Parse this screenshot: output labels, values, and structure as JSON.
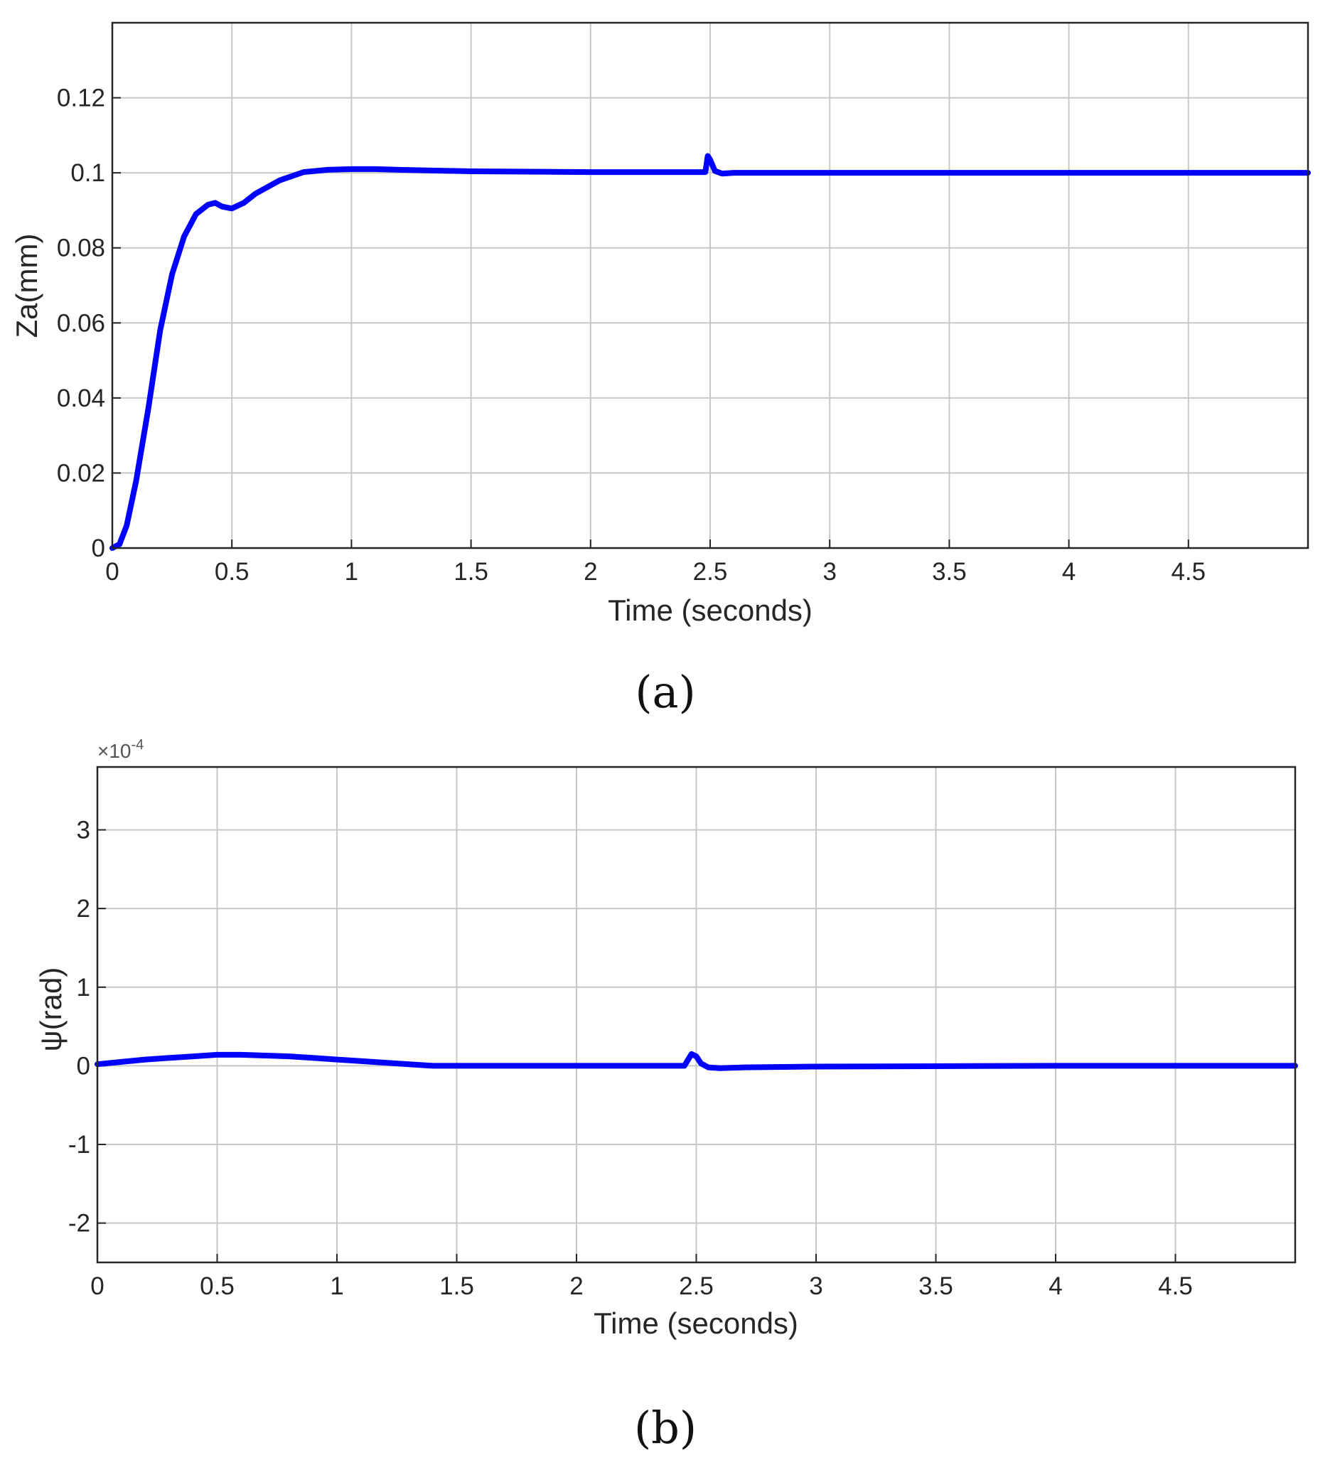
{
  "chart_data": [
    {
      "type": "line",
      "caption": "(a)",
      "xlabel": "Time (seconds)",
      "ylabel": "Za(mm)",
      "xlim": [
        0,
        5
      ],
      "ylim": [
        0,
        0.14
      ],
      "xticks": [
        0,
        0.5,
        1,
        1.5,
        2,
        2.5,
        3,
        3.5,
        4,
        4.5
      ],
      "xtick_labels": [
        "0",
        "0.5",
        "1",
        "1.5",
        "2",
        "2.5",
        "3",
        "3.5",
        "4",
        "4.5"
      ],
      "yticks": [
        0,
        0.02,
        0.04,
        0.06,
        0.08,
        0.1,
        0.12
      ],
      "ytick_labels": [
        "0",
        "0.02",
        "0.04",
        "0.06",
        "0.08",
        "0.1",
        "0.12"
      ],
      "exponent_label": "",
      "grid": true,
      "series": [
        {
          "color": "#0000ff",
          "x": [
            0,
            0.03,
            0.06,
            0.1,
            0.15,
            0.2,
            0.25,
            0.3,
            0.35,
            0.4,
            0.43,
            0.46,
            0.5,
            0.55,
            0.6,
            0.7,
            0.8,
            0.9,
            1.0,
            1.1,
            1.2,
            1.5,
            2.0,
            2.48,
            2.49,
            2.5,
            2.52,
            2.55,
            2.6,
            3.0,
            4.0,
            5.0
          ],
          "y": [
            0,
            0.001,
            0.006,
            0.018,
            0.037,
            0.058,
            0.073,
            0.083,
            0.089,
            0.0915,
            0.092,
            0.091,
            0.0905,
            0.092,
            0.0945,
            0.098,
            0.1002,
            0.1008,
            0.101,
            0.101,
            0.1008,
            0.1004,
            0.1002,
            0.1002,
            0.1045,
            0.1035,
            0.1005,
            0.0998,
            0.1,
            0.1,
            0.1,
            0.1
          ]
        }
      ]
    },
    {
      "type": "line",
      "caption": "(b)",
      "xlabel": "Time (seconds)",
      "ylabel": "ψ(rad)",
      "xlim": [
        0,
        5
      ],
      "ylim": [
        -2.5,
        3.8
      ],
      "xticks": [
        0,
        0.5,
        1,
        1.5,
        2,
        2.5,
        3,
        3.5,
        4,
        4.5
      ],
      "xtick_labels": [
        "0",
        "0.5",
        "1",
        "1.5",
        "2",
        "2.5",
        "3",
        "3.5",
        "4",
        "4.5"
      ],
      "yticks": [
        -2,
        -1,
        0,
        1,
        2,
        3
      ],
      "ytick_labels": [
        "-2",
        "-1",
        "0",
        "1",
        "2",
        "3"
      ],
      "exponent_label": "×10-4",
      "exponent_base": "×10",
      "exponent_power": "-4",
      "grid": true,
      "series": [
        {
          "color": "#0000ff",
          "x": [
            0,
            0.1,
            0.2,
            0.3,
            0.4,
            0.5,
            0.6,
            0.7,
            0.8,
            0.9,
            1.0,
            1.1,
            1.2,
            1.3,
            1.4,
            1.5,
            2.0,
            2.45,
            2.48,
            2.5,
            2.52,
            2.55,
            2.6,
            2.7,
            3.0,
            4.0,
            5.0
          ],
          "y": [
            0.02,
            0.05,
            0.08,
            0.1,
            0.12,
            0.14,
            0.14,
            0.13,
            0.12,
            0.1,
            0.08,
            0.06,
            0.04,
            0.02,
            0.0,
            0.0,
            0.0,
            0.0,
            0.15,
            0.12,
            0.03,
            -0.02,
            -0.03,
            -0.02,
            -0.01,
            0.0,
            0.0
          ]
        }
      ]
    }
  ]
}
